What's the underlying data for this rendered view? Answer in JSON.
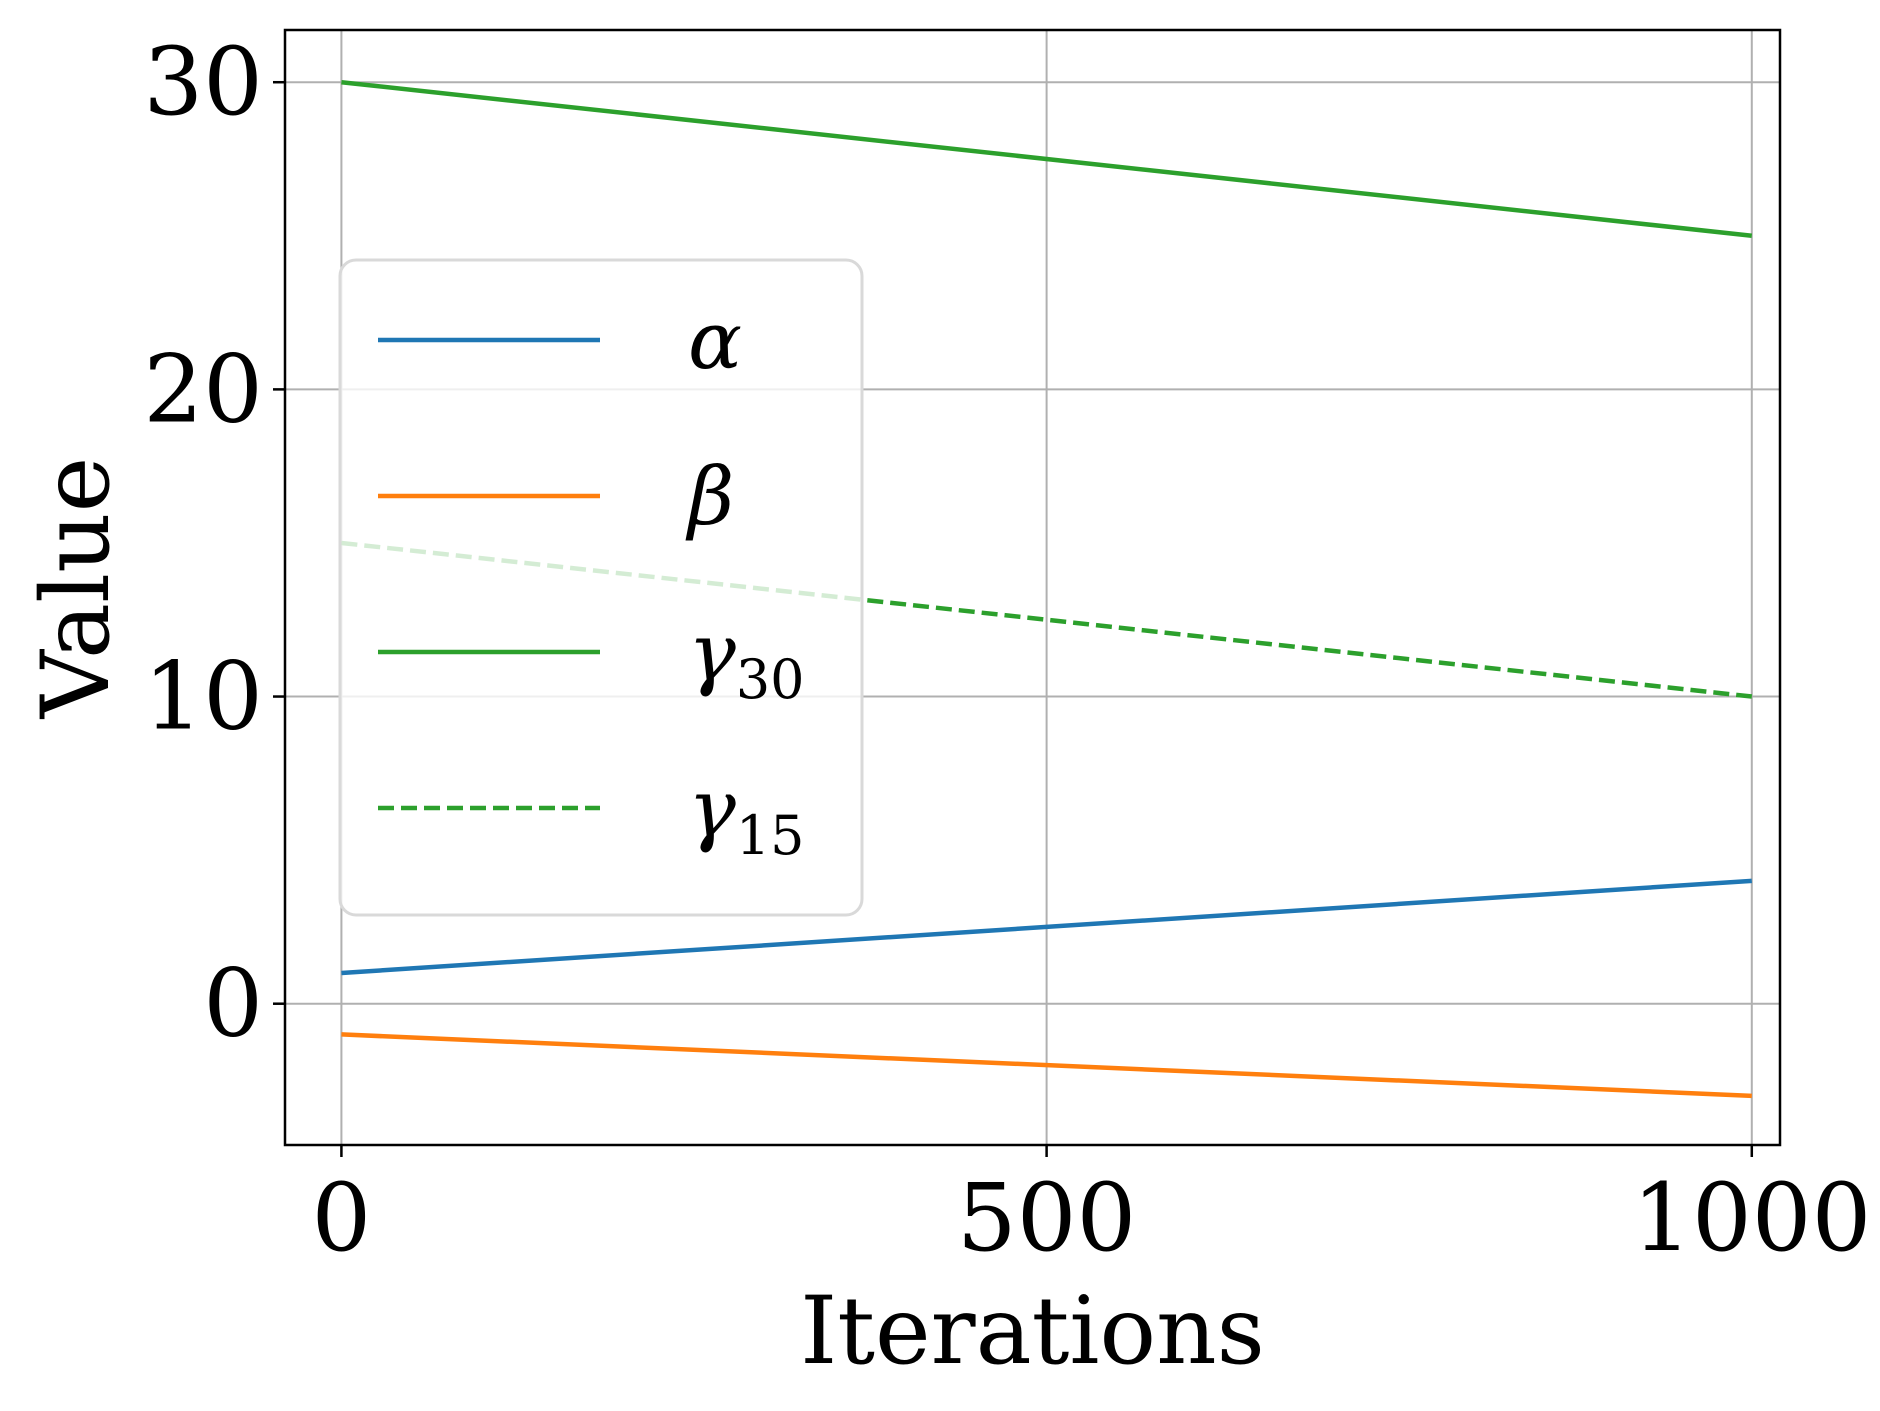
{
  "chart_data": {
    "type": "line",
    "xlabel": "Iterations",
    "ylabel": "Value",
    "xlim": [
      -40,
      1020
    ],
    "ylim": [
      -4.6,
      31.7
    ],
    "xticks": [
      0,
      500,
      1000
    ],
    "yticks": [
      0,
      10,
      20,
      30
    ],
    "xtick_labels": [
      "0",
      "500",
      "1000"
    ],
    "ytick_labels": [
      "0",
      "10",
      "20",
      "30"
    ],
    "grid": true,
    "legend_position": "center-left",
    "series": [
      {
        "name": "α",
        "color": "#1f77b4",
        "style": "solid",
        "x": [
          0,
          1000
        ],
        "y": [
          1,
          4
        ]
      },
      {
        "name": "β",
        "color": "#ff7f0e",
        "style": "solid",
        "x": [
          0,
          1000
        ],
        "y": [
          -1,
          -3
        ]
      },
      {
        "name": "γ",
        "subscript": "30",
        "color": "#2ca02c",
        "style": "solid",
        "x": [
          0,
          1000
        ],
        "y": [
          30,
          25
        ]
      },
      {
        "name": "γ",
        "subscript": "15",
        "color": "#2ca02c",
        "style": "dashed",
        "x": [
          0,
          1000
        ],
        "y": [
          15,
          10
        ]
      }
    ]
  }
}
